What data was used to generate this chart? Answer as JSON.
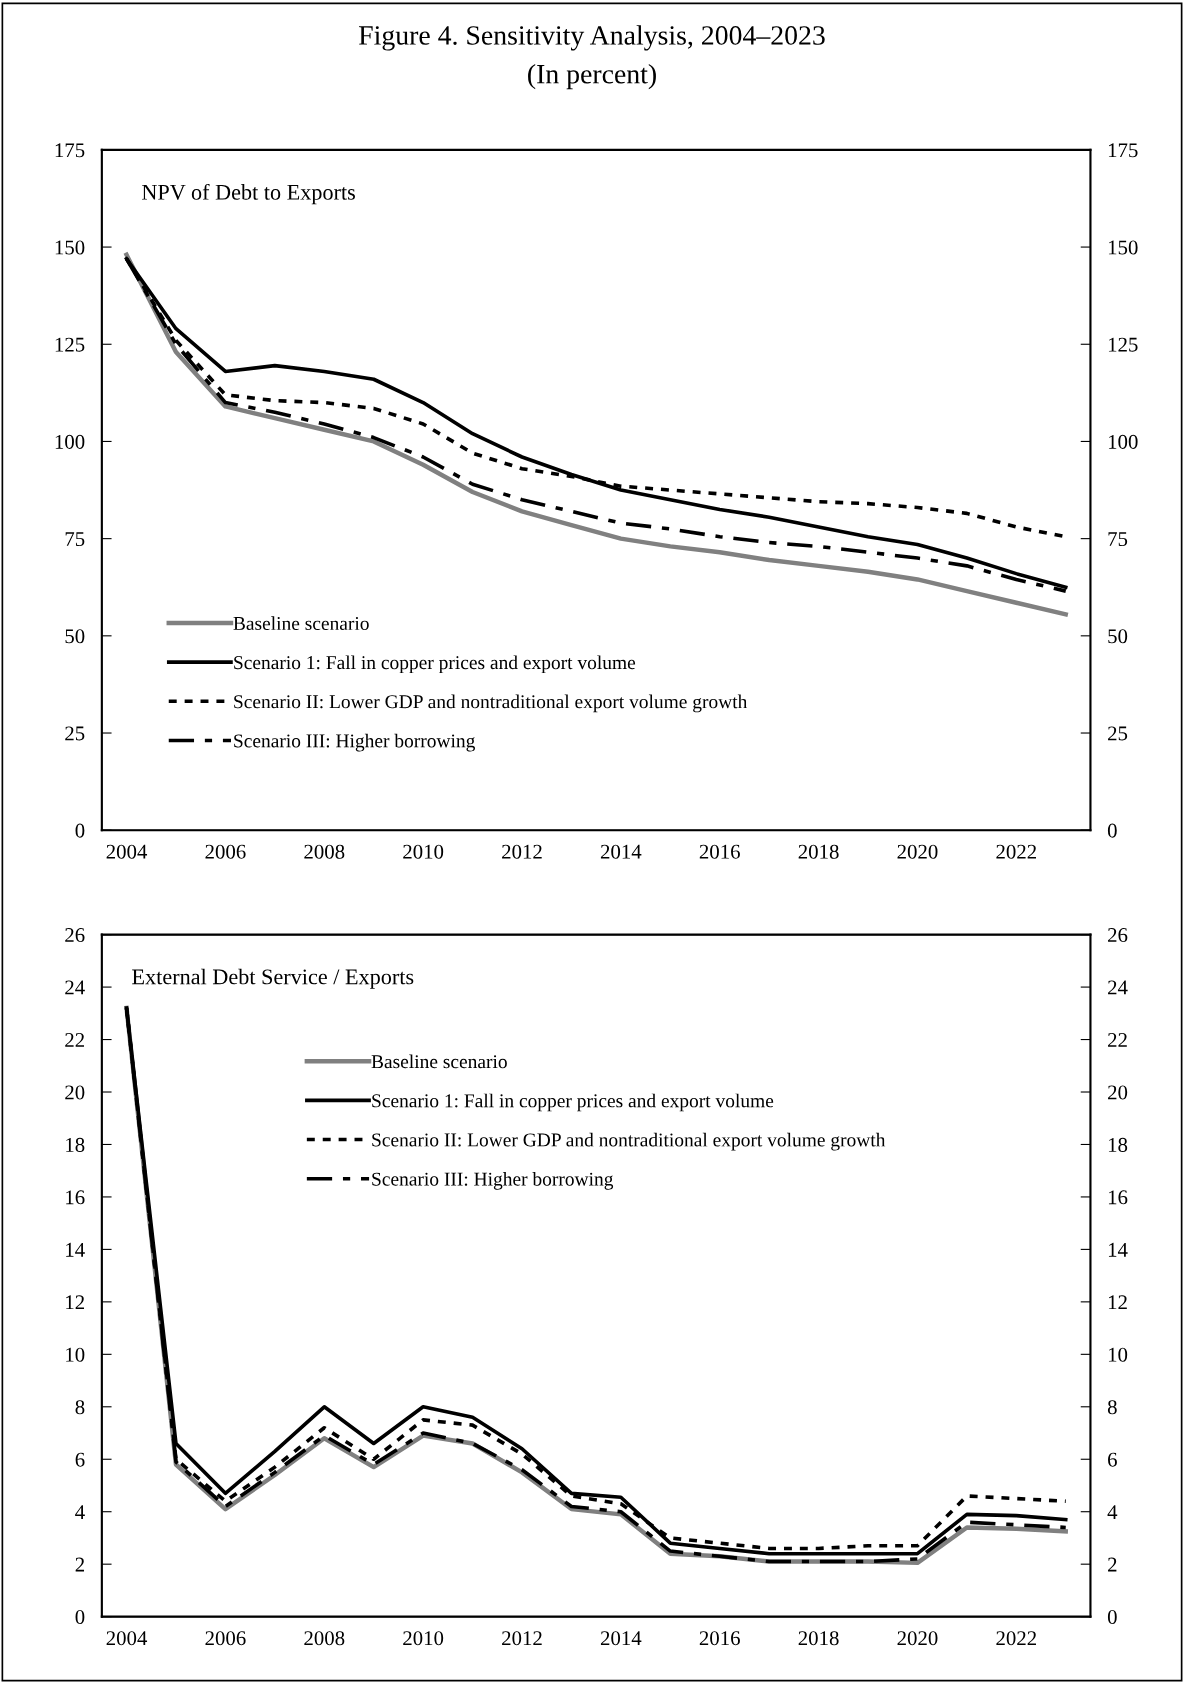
{
  "chart_data": [
    {
      "type": "line",
      "title": "Figure 4. Sensitivity Analysis, 2004–2023",
      "subtitle": "(In percent)",
      "annotations": [
        "NPV of Debt to Exports"
      ],
      "categories": [
        "2004",
        null,
        "2006",
        null,
        "2008",
        null,
        "2010",
        null,
        "2012",
        null,
        "2014",
        null,
        "2016",
        null,
        "2018",
        null,
        "2020",
        null,
        "2022",
        null
      ],
      "ylim": [
        0,
        175
      ],
      "yticks": [
        0,
        25,
        50,
        75,
        100,
        125,
        150,
        175
      ],
      "y2lim": [
        0,
        175
      ],
      "y2ticks": [
        0,
        25,
        50,
        75,
        100,
        125,
        150,
        175
      ],
      "legend": "bottom left",
      "grid": false,
      "series": [
        {
          "name": "Baseline scenario",
          "color": "#808080",
          "line_style": "solid",
          "values": [
            148,
            123,
            109,
            106,
            103,
            100,
            94,
            87,
            82,
            78.5,
            75,
            73,
            71.5,
            69.5,
            68,
            66.5,
            64.5,
            61.5,
            58.5,
            55.5
          ]
        },
        {
          "name": "Scenario 1: Fall in copper prices and export volume",
          "color": "#000000",
          "line_style": "solid",
          "values": [
            147,
            129,
            118,
            119.5,
            118,
            116,
            110,
            102,
            96,
            91.5,
            87.5,
            85,
            82.5,
            80.5,
            78,
            75.5,
            73.5,
            70,
            66,
            62.5
          ]
        },
        {
          "name": "Scenario II: Lower GDP and nontraditional export volume growth",
          "color": "#000000",
          "line_style": "dotted",
          "values": [
            147,
            126,
            112,
            110.5,
            110,
            108.5,
            104.5,
            97,
            93,
            91,
            88.5,
            87.5,
            86.5,
            85.5,
            84.5,
            84,
            83,
            81.5,
            78,
            75.5
          ]
        },
        {
          "name": "Scenario III: Higher borrowing",
          "color": "#000000",
          "line_style": "dashdot",
          "values": [
            147,
            125,
            110,
            107.5,
            104.5,
            101,
            96,
            89,
            85,
            82,
            79,
            77.5,
            75.5,
            74,
            73,
            71.5,
            70,
            68,
            64.5,
            61.5
          ]
        }
      ]
    },
    {
      "type": "line",
      "annotations": [
        "External Debt Service / Exports"
      ],
      "categories": [
        "2004",
        null,
        "2006",
        null,
        "2008",
        null,
        "2010",
        null,
        "2012",
        null,
        "2014",
        null,
        "2016",
        null,
        "2018",
        null,
        "2020",
        null,
        "2022",
        null
      ],
      "ylim": [
        0,
        26
      ],
      "yticks": [
        0,
        2,
        4,
        6,
        8,
        10,
        12,
        14,
        16,
        18,
        20,
        22,
        24,
        26
      ],
      "y2lim": [
        0,
        26
      ],
      "y2ticks": [
        0,
        2,
        4,
        6,
        8,
        10,
        12,
        14,
        16,
        18,
        20,
        22,
        24,
        26
      ],
      "legend": "top",
      "grid": false,
      "series": [
        {
          "name": "Baseline scenario",
          "color": "#808080",
          "line_style": "solid",
          "values": [
            23.2,
            5.8,
            4.1,
            5.4,
            6.8,
            5.7,
            6.9,
            6.6,
            5.5,
            4.1,
            3.9,
            2.4,
            2.3,
            2.1,
            2.1,
            2.1,
            2.05,
            3.4,
            3.35,
            3.25
          ]
        },
        {
          "name": "Scenario 1: Fall in copper prices and export volume",
          "color": "#000000",
          "line_style": "solid",
          "values": [
            23.2,
            6.6,
            4.7,
            6.3,
            8.0,
            6.6,
            8.0,
            7.6,
            6.4,
            4.7,
            4.55,
            2.8,
            2.6,
            2.4,
            2.4,
            2.4,
            2.4,
            3.9,
            3.85,
            3.7
          ]
        },
        {
          "name": "Scenario II: Lower GDP and nontraditional export volume growth",
          "color": "#000000",
          "line_style": "dotted",
          "values": [
            23.2,
            6.0,
            4.4,
            5.7,
            7.2,
            6.0,
            7.5,
            7.3,
            6.2,
            4.6,
            4.3,
            3.0,
            2.8,
            2.6,
            2.6,
            2.7,
            2.7,
            4.6,
            4.5,
            4.4
          ]
        },
        {
          "name": "Scenario III: Higher borrowing",
          "color": "#000000",
          "line_style": "dashdot",
          "values": [
            23.2,
            5.9,
            4.2,
            5.5,
            6.9,
            5.8,
            7.0,
            6.6,
            5.6,
            4.2,
            4.0,
            2.5,
            2.3,
            2.1,
            2.1,
            2.1,
            2.2,
            3.6,
            3.5,
            3.4
          ]
        }
      ]
    }
  ]
}
